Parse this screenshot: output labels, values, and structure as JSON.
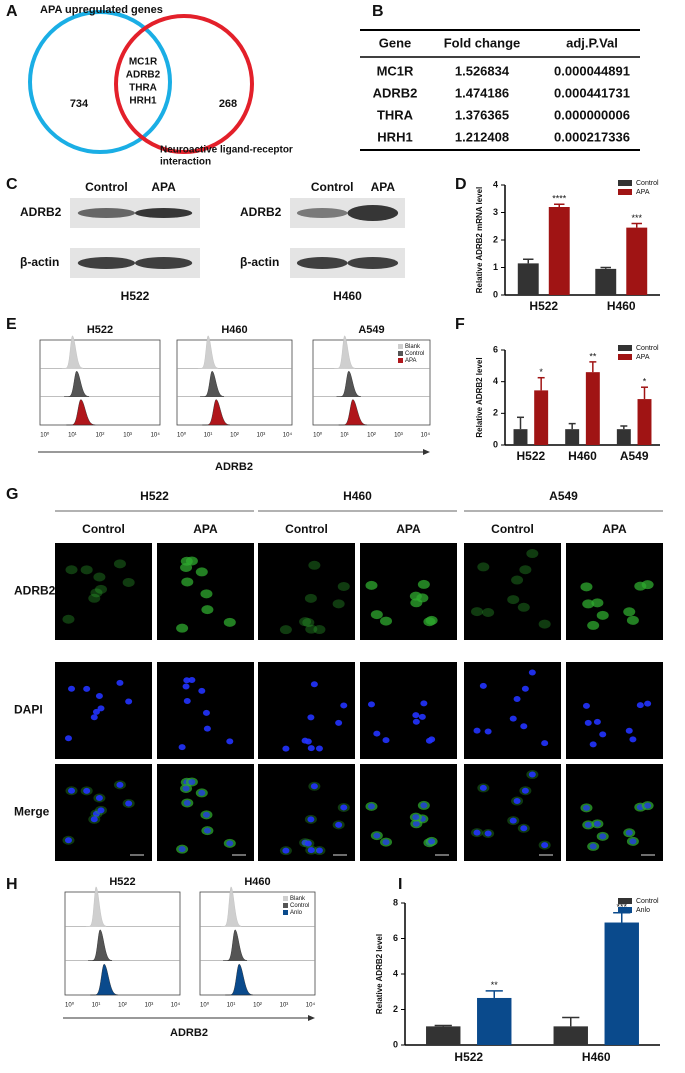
{
  "panel_letters": [
    "A",
    "B",
    "C",
    "D",
    "E",
    "F",
    "G",
    "H",
    "I"
  ],
  "venn": {
    "sets": [
      {
        "label": [
          "APA upregulated genes"
        ],
        "count": 734,
        "color": "#1aaee5"
      },
      {
        "label": [
          "Neuroactive ligand-receptor",
          "interaction"
        ],
        "count": 268,
        "color": "#e3202a"
      }
    ],
    "intersection": [
      "MC1R",
      "ADRB2",
      "THRA",
      "HRH1"
    ]
  },
  "table": {
    "header": [
      "Gene",
      "Fold change",
      "adj.P.Val"
    ],
    "rows": [
      [
        "MC1R",
        "1.526834",
        "0.000044891"
      ],
      [
        "ADRB2",
        "1.474186",
        "0.000441731"
      ],
      [
        "THRA",
        "1.376365",
        "0.000000006"
      ],
      [
        "HRH1",
        "1.212408",
        "0.000217336"
      ]
    ],
    "highlight_row": 1,
    "highlight_color": "#e3202a"
  },
  "western_blots": {
    "conditions": [
      "Control",
      "APA"
    ],
    "proteins": [
      "ADRB2",
      "β-actin"
    ],
    "cell_lines": [
      "H522",
      "H460"
    ]
  },
  "flow_E": {
    "cell_lines": [
      "H522",
      "H460",
      "A549"
    ],
    "xlabel": "ADRB2",
    "xticks": [
      "10⁰",
      "10¹",
      "10²",
      "10³",
      "10⁴"
    ],
    "legend": [
      {
        "name": "Blank",
        "color": "#cfcfcf"
      },
      {
        "name": "Control",
        "color": "#555555"
      },
      {
        "name": "APA",
        "color": "#b0161b"
      }
    ]
  },
  "microscopy": {
    "cell_lines": [
      "H522",
      "H460",
      "A549"
    ],
    "conditions": [
      "Control",
      "APA"
    ],
    "channels": [
      {
        "name": "ADRB2",
        "color": "#1a8a1a"
      },
      {
        "name": "DAPI",
        "color": "#2a2aa8"
      },
      {
        "name": "Merge",
        "color": "#111111"
      }
    ]
  },
  "flow_H": {
    "cell_lines": [
      "H522",
      "H460"
    ],
    "xlabel": "ADRB2",
    "xticks": [
      "10⁰",
      "10¹",
      "10²",
      "10³",
      "10⁴"
    ],
    "legend": [
      {
        "name": "Blank",
        "color": "#cfcfcf"
      },
      {
        "name": "Control",
        "color": "#555555"
      },
      {
        "name": "Anlo",
        "color": "#0a4a8c"
      }
    ]
  },
  "chart_data": [
    {
      "type": "bar",
      "ylabel": "Relative ADRB2 mRNA level",
      "categories": [
        "H522",
        "H460"
      ],
      "series": [
        {
          "name": "Control",
          "color": "#333333",
          "values": [
            1.15,
            0.95
          ],
          "errors": [
            0.15,
            0.05
          ],
          "significance": [
            null,
            null
          ]
        },
        {
          "name": "APA",
          "color": "#a01414",
          "values": [
            3.2,
            2.45
          ],
          "errors": [
            0.1,
            0.15
          ],
          "significance": [
            "****",
            "***"
          ]
        }
      ],
      "ylim": [
        0,
        4
      ],
      "yticks": [
        0,
        1,
        2,
        3,
        4
      ],
      "legend": "upper right"
    },
    {
      "type": "bar",
      "ylabel": "Relative ADRB2 level",
      "categories": [
        "H522",
        "H460",
        "A549"
      ],
      "series": [
        {
          "name": "Control",
          "color": "#333333",
          "values": [
            1,
            1,
            1
          ],
          "errors": [
            0.75,
            0.35,
            0.2
          ],
          "significance": [
            null,
            null,
            null
          ]
        },
        {
          "name": "APA",
          "color": "#a01414",
          "values": [
            3.45,
            4.6,
            2.9
          ],
          "errors": [
            0.8,
            0.65,
            0.75
          ],
          "significance": [
            "*",
            "**",
            "*"
          ]
        }
      ],
      "ylim": [
        0,
        6
      ],
      "yticks": [
        0,
        2,
        4,
        6
      ],
      "legend": "upper right"
    },
    {
      "type": "bar",
      "ylabel": "Relative ADRB2 level",
      "categories": [
        "H522",
        "H460"
      ],
      "series": [
        {
          "name": "Control",
          "color": "#333333",
          "values": [
            1.05,
            1.05
          ],
          "errors": [
            0.05,
            0.5
          ],
          "significance": [
            null,
            null
          ]
        },
        {
          "name": "Anlo",
          "color": "#0a4a8c",
          "values": [
            2.65,
            6.9
          ],
          "errors": [
            0.4,
            0.55
          ],
          "significance": [
            "**",
            "***"
          ]
        }
      ],
      "ylim": [
        0,
        8
      ],
      "yticks": [
        0,
        2,
        4,
        6,
        8
      ],
      "legend": "upper right"
    }
  ]
}
